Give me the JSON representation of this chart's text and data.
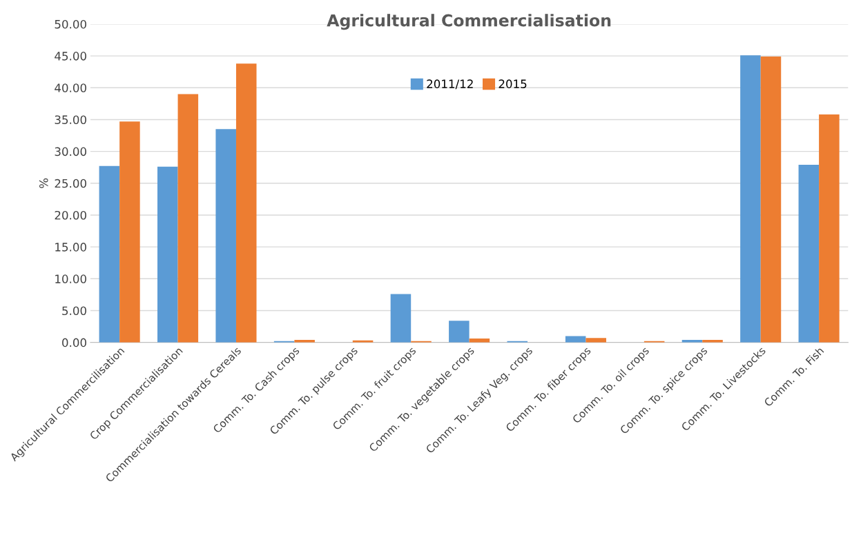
{
  "chart_data": {
    "type": "bar",
    "title": "Agricultural Commercialisation",
    "ylabel": "%",
    "categories": [
      "Agricultural Commercilisation",
      "Crop Commercialisation",
      "Commercialisation towards Cereals",
      "Comm. To. Cash crops",
      "Comm. To. pulse crops",
      "Comm. To. fruit crops",
      "Comm. To. vegetable crops",
      "Comm. To. Leafy Veg. crops",
      "Comm. To. fiber crops",
      "Comm. To. oil crops",
      "Comm. To. spice crops",
      "Comm. To. Livestocks",
      "Comm. To. Fish"
    ],
    "series": [
      {
        "name": "2011/12",
        "color": "#5b9bd5",
        "values": [
          27.7,
          27.6,
          33.5,
          0.2,
          null,
          7.6,
          3.4,
          0.2,
          1.0,
          null,
          0.4,
          45.1,
          27.9
        ]
      },
      {
        "name": "2015",
        "color": "#ed7d31",
        "values": [
          34.7,
          39.0,
          43.8,
          0.4,
          0.3,
          0.2,
          0.6,
          null,
          0.7,
          0.2,
          0.4,
          44.9,
          35.8
        ]
      }
    ],
    "ylim": [
      0,
      50
    ],
    "yticks": [
      {
        "value": 0,
        "label": "0.00"
      },
      {
        "value": 5,
        "label": "5.00"
      },
      {
        "value": 10,
        "label": "10.00"
      },
      {
        "value": 15,
        "label": "15.00"
      },
      {
        "value": 20,
        "label": "20.00"
      },
      {
        "value": 25,
        "label": "25.00"
      },
      {
        "value": 30,
        "label": "30.00"
      },
      {
        "value": 35,
        "label": "35.00"
      },
      {
        "value": 40,
        "label": "40.00"
      },
      {
        "value": 45,
        "label": "45.00"
      },
      {
        "value": 50,
        "label": "50.00"
      }
    ],
    "grid": "y",
    "legend": "top"
  }
}
